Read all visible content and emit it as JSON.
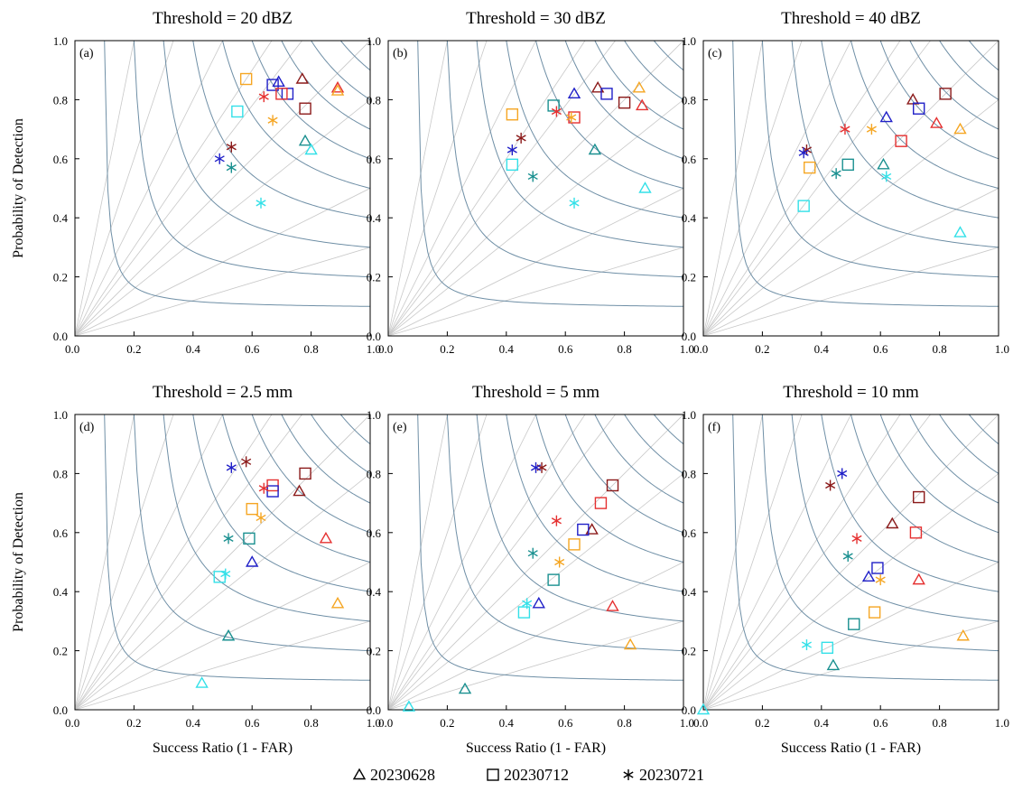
{
  "figure": {
    "ylabel": "Probability of Detection",
    "xlabel": "Success Ratio (1 - FAR)",
    "x_ticks": [
      "0.0",
      "0.2",
      "0.4",
      "0.6",
      "0.8",
      "1.0"
    ],
    "y_ticks": [
      "0.0",
      "0.2",
      "0.4",
      "0.6",
      "0.8",
      "1.0"
    ],
    "legend": [
      {
        "marker": "triangle",
        "label": "20230628"
      },
      {
        "marker": "square",
        "label": "20230712"
      },
      {
        "marker": "asterisk",
        "label": "20230721"
      }
    ]
  },
  "chart_data": [
    {
      "type": "scatter",
      "panel": "(a)",
      "title": "Threshold = 20 dBZ",
      "xlabel": "",
      "ylabel": "Probability of Detection",
      "xlim": [
        0,
        1
      ],
      "ylim": [
        0,
        1
      ],
      "points": [
        {
          "marker": "square",
          "color": "#f5a623",
          "x": 0.58,
          "y": 0.87
        },
        {
          "marker": "triangle",
          "color": "#2020c8",
          "x": 0.69,
          "y": 0.86
        },
        {
          "marker": "square",
          "color": "#2020c8",
          "x": 0.67,
          "y": 0.85
        },
        {
          "marker": "triangle",
          "color": "#8b1a1a",
          "x": 0.77,
          "y": 0.87
        },
        {
          "marker": "triangle",
          "color": "#e53030",
          "x": 0.89,
          "y": 0.84
        },
        {
          "marker": "triangle",
          "color": "#f5a623",
          "x": 0.89,
          "y": 0.83
        },
        {
          "marker": "square",
          "color": "#2020c8",
          "x": 0.72,
          "y": 0.82
        },
        {
          "marker": "square",
          "color": "#e53030",
          "x": 0.7,
          "y": 0.82
        },
        {
          "marker": "asterisk",
          "color": "#e53030",
          "x": 0.64,
          "y": 0.81
        },
        {
          "marker": "square",
          "color": "#8b1a1a",
          "x": 0.78,
          "y": 0.77
        },
        {
          "marker": "square",
          "color": "#33e0e8",
          "x": 0.55,
          "y": 0.76
        },
        {
          "marker": "asterisk",
          "color": "#f5a623",
          "x": 0.67,
          "y": 0.73
        },
        {
          "marker": "triangle",
          "color": "#1a9090",
          "x": 0.78,
          "y": 0.66
        },
        {
          "marker": "triangle",
          "color": "#33e0e8",
          "x": 0.8,
          "y": 0.63
        },
        {
          "marker": "asterisk",
          "color": "#8b1a1a",
          "x": 0.53,
          "y": 0.64
        },
        {
          "marker": "asterisk",
          "color": "#2020c8",
          "x": 0.49,
          "y": 0.6
        },
        {
          "marker": "asterisk",
          "color": "#1a9090",
          "x": 0.53,
          "y": 0.57
        },
        {
          "marker": "asterisk",
          "color": "#33e0e8",
          "x": 0.63,
          "y": 0.45
        }
      ]
    },
    {
      "type": "scatter",
      "panel": "(b)",
      "title": "Threshold = 30 dBZ",
      "xlabel": "",
      "ylabel": "",
      "xlim": [
        0,
        1
      ],
      "ylim": [
        0,
        1
      ],
      "points": [
        {
          "marker": "triangle",
          "color": "#2020c8",
          "x": 0.63,
          "y": 0.82
        },
        {
          "marker": "triangle",
          "color": "#8b1a1a",
          "x": 0.71,
          "y": 0.84
        },
        {
          "marker": "square",
          "color": "#2020c8",
          "x": 0.74,
          "y": 0.82
        },
        {
          "marker": "triangle",
          "color": "#f5a623",
          "x": 0.85,
          "y": 0.84
        },
        {
          "marker": "square",
          "color": "#8b1a1a",
          "x": 0.8,
          "y": 0.79
        },
        {
          "marker": "triangle",
          "color": "#e53030",
          "x": 0.86,
          "y": 0.78
        },
        {
          "marker": "square",
          "color": "#1a9090",
          "x": 0.56,
          "y": 0.78
        },
        {
          "marker": "asterisk",
          "color": "#e53030",
          "x": 0.57,
          "y": 0.76
        },
        {
          "marker": "square",
          "color": "#e53030",
          "x": 0.63,
          "y": 0.74
        },
        {
          "marker": "asterisk",
          "color": "#f5a623",
          "x": 0.62,
          "y": 0.74
        },
        {
          "marker": "square",
          "color": "#f5a623",
          "x": 0.42,
          "y": 0.75
        },
        {
          "marker": "asterisk",
          "color": "#8b1a1a",
          "x": 0.45,
          "y": 0.67
        },
        {
          "marker": "asterisk",
          "color": "#2020c8",
          "x": 0.42,
          "y": 0.63
        },
        {
          "marker": "triangle",
          "color": "#1a9090",
          "x": 0.7,
          "y": 0.63
        },
        {
          "marker": "square",
          "color": "#33e0e8",
          "x": 0.42,
          "y": 0.58
        },
        {
          "marker": "asterisk",
          "color": "#1a9090",
          "x": 0.49,
          "y": 0.54
        },
        {
          "marker": "triangle",
          "color": "#33e0e8",
          "x": 0.87,
          "y": 0.5
        },
        {
          "marker": "asterisk",
          "color": "#33e0e8",
          "x": 0.63,
          "y": 0.45
        }
      ]
    },
    {
      "type": "scatter",
      "panel": "(c)",
      "title": "Threshold = 40 dBZ",
      "xlabel": "",
      "ylabel": "",
      "xlim": [
        0,
        1
      ],
      "ylim": [
        0,
        1
      ],
      "points": [
        {
          "marker": "square",
          "color": "#8b1a1a",
          "x": 0.82,
          "y": 0.82
        },
        {
          "marker": "triangle",
          "color": "#8b1a1a",
          "x": 0.71,
          "y": 0.8
        },
        {
          "marker": "square",
          "color": "#2020c8",
          "x": 0.73,
          "y": 0.77
        },
        {
          "marker": "triangle",
          "color": "#2020c8",
          "x": 0.62,
          "y": 0.74
        },
        {
          "marker": "triangle",
          "color": "#e53030",
          "x": 0.79,
          "y": 0.72
        },
        {
          "marker": "triangle",
          "color": "#f5a623",
          "x": 0.87,
          "y": 0.7
        },
        {
          "marker": "asterisk",
          "color": "#f5a623",
          "x": 0.57,
          "y": 0.7
        },
        {
          "marker": "asterisk",
          "color": "#e53030",
          "x": 0.48,
          "y": 0.7
        },
        {
          "marker": "square",
          "color": "#e53030",
          "x": 0.67,
          "y": 0.66
        },
        {
          "marker": "asterisk",
          "color": "#8b1a1a",
          "x": 0.35,
          "y": 0.63
        },
        {
          "marker": "asterisk",
          "color": "#2020c8",
          "x": 0.34,
          "y": 0.62
        },
        {
          "marker": "square",
          "color": "#1a9090",
          "x": 0.49,
          "y": 0.58
        },
        {
          "marker": "triangle",
          "color": "#1a9090",
          "x": 0.61,
          "y": 0.58
        },
        {
          "marker": "square",
          "color": "#f5a623",
          "x": 0.36,
          "y": 0.57
        },
        {
          "marker": "asterisk",
          "color": "#1a9090",
          "x": 0.45,
          "y": 0.55
        },
        {
          "marker": "asterisk",
          "color": "#33e0e8",
          "x": 0.62,
          "y": 0.54
        },
        {
          "marker": "square",
          "color": "#33e0e8",
          "x": 0.34,
          "y": 0.44
        },
        {
          "marker": "triangle",
          "color": "#33e0e8",
          "x": 0.87,
          "y": 0.35
        }
      ]
    },
    {
      "type": "scatter",
      "panel": "(d)",
      "title": "Threshold = 2.5 mm",
      "xlabel": "Success Ratio (1 - FAR)",
      "ylabel": "Probability of Detection",
      "xlim": [
        0,
        1
      ],
      "ylim": [
        0,
        1
      ],
      "points": [
        {
          "marker": "asterisk",
          "color": "#8b1a1a",
          "x": 0.58,
          "y": 0.84
        },
        {
          "marker": "asterisk",
          "color": "#2020c8",
          "x": 0.53,
          "y": 0.82
        },
        {
          "marker": "square",
          "color": "#8b1a1a",
          "x": 0.78,
          "y": 0.8
        },
        {
          "marker": "square",
          "color": "#e53030",
          "x": 0.67,
          "y": 0.76
        },
        {
          "marker": "square",
          "color": "#2020c8",
          "x": 0.67,
          "y": 0.74
        },
        {
          "marker": "asterisk",
          "color": "#e53030",
          "x": 0.64,
          "y": 0.75
        },
        {
          "marker": "triangle",
          "color": "#8b1a1a",
          "x": 0.76,
          "y": 0.74
        },
        {
          "marker": "square",
          "color": "#f5a623",
          "x": 0.6,
          "y": 0.68
        },
        {
          "marker": "asterisk",
          "color": "#f5a623",
          "x": 0.63,
          "y": 0.65
        },
        {
          "marker": "square",
          "color": "#1a9090",
          "x": 0.59,
          "y": 0.58
        },
        {
          "marker": "asterisk",
          "color": "#1a9090",
          "x": 0.52,
          "y": 0.58
        },
        {
          "marker": "triangle",
          "color": "#e53030",
          "x": 0.85,
          "y": 0.58
        },
        {
          "marker": "triangle",
          "color": "#2020c8",
          "x": 0.6,
          "y": 0.5
        },
        {
          "marker": "square",
          "color": "#33e0e8",
          "x": 0.49,
          "y": 0.45
        },
        {
          "marker": "asterisk",
          "color": "#33e0e8",
          "x": 0.51,
          "y": 0.46
        },
        {
          "marker": "triangle",
          "color": "#f5a623",
          "x": 0.89,
          "y": 0.36
        },
        {
          "marker": "triangle",
          "color": "#1a9090",
          "x": 0.52,
          "y": 0.25
        },
        {
          "marker": "triangle",
          "color": "#33e0e8",
          "x": 0.43,
          "y": 0.09
        }
      ]
    },
    {
      "type": "scatter",
      "panel": "(e)",
      "title": "Threshold = 5 mm",
      "xlabel": "Success Ratio (1 - FAR)",
      "ylabel": "",
      "xlim": [
        0,
        1
      ],
      "ylim": [
        0,
        1
      ],
      "points": [
        {
          "marker": "asterisk",
          "color": "#8b1a1a",
          "x": 0.52,
          "y": 0.82
        },
        {
          "marker": "asterisk",
          "color": "#2020c8",
          "x": 0.5,
          "y": 0.82
        },
        {
          "marker": "square",
          "color": "#8b1a1a",
          "x": 0.76,
          "y": 0.76
        },
        {
          "marker": "square",
          "color": "#e53030",
          "x": 0.72,
          "y": 0.7
        },
        {
          "marker": "asterisk",
          "color": "#e53030",
          "x": 0.57,
          "y": 0.64
        },
        {
          "marker": "triangle",
          "color": "#8b1a1a",
          "x": 0.69,
          "y": 0.61
        },
        {
          "marker": "square",
          "color": "#2020c8",
          "x": 0.66,
          "y": 0.61
        },
        {
          "marker": "square",
          "color": "#f5a623",
          "x": 0.63,
          "y": 0.56
        },
        {
          "marker": "asterisk",
          "color": "#1a9090",
          "x": 0.49,
          "y": 0.53
        },
        {
          "marker": "asterisk",
          "color": "#f5a623",
          "x": 0.58,
          "y": 0.5
        },
        {
          "marker": "square",
          "color": "#1a9090",
          "x": 0.56,
          "y": 0.44
        },
        {
          "marker": "triangle",
          "color": "#2020c8",
          "x": 0.51,
          "y": 0.36
        },
        {
          "marker": "asterisk",
          "color": "#33e0e8",
          "x": 0.47,
          "y": 0.36
        },
        {
          "marker": "triangle",
          "color": "#e53030",
          "x": 0.76,
          "y": 0.35
        },
        {
          "marker": "square",
          "color": "#33e0e8",
          "x": 0.46,
          "y": 0.33
        },
        {
          "marker": "triangle",
          "color": "#f5a623",
          "x": 0.82,
          "y": 0.22
        },
        {
          "marker": "triangle",
          "color": "#1a9090",
          "x": 0.26,
          "y": 0.07
        },
        {
          "marker": "triangle",
          "color": "#33e0e8",
          "x": 0.07,
          "y": 0.01
        }
      ]
    },
    {
      "type": "scatter",
      "panel": "(f)",
      "title": "Threshold = 10 mm",
      "xlabel": "Success Ratio (1 - FAR)",
      "ylabel": "",
      "xlim": [
        0,
        1
      ],
      "ylim": [
        0,
        1
      ],
      "points": [
        {
          "marker": "asterisk",
          "color": "#2020c8",
          "x": 0.47,
          "y": 0.8
        },
        {
          "marker": "asterisk",
          "color": "#8b1a1a",
          "x": 0.43,
          "y": 0.76
        },
        {
          "marker": "square",
          "color": "#8b1a1a",
          "x": 0.73,
          "y": 0.72
        },
        {
          "marker": "triangle",
          "color": "#8b1a1a",
          "x": 0.64,
          "y": 0.63
        },
        {
          "marker": "square",
          "color": "#e53030",
          "x": 0.72,
          "y": 0.6
        },
        {
          "marker": "asterisk",
          "color": "#e53030",
          "x": 0.52,
          "y": 0.58
        },
        {
          "marker": "asterisk",
          "color": "#1a9090",
          "x": 0.49,
          "y": 0.52
        },
        {
          "marker": "square",
          "color": "#2020c8",
          "x": 0.59,
          "y": 0.48
        },
        {
          "marker": "triangle",
          "color": "#2020c8",
          "x": 0.56,
          "y": 0.45
        },
        {
          "marker": "asterisk",
          "color": "#f5a623",
          "x": 0.6,
          "y": 0.44
        },
        {
          "marker": "triangle",
          "color": "#e53030",
          "x": 0.73,
          "y": 0.44
        },
        {
          "marker": "square",
          "color": "#f5a623",
          "x": 0.58,
          "y": 0.33
        },
        {
          "marker": "square",
          "color": "#1a9090",
          "x": 0.51,
          "y": 0.29
        },
        {
          "marker": "triangle",
          "color": "#f5a623",
          "x": 0.88,
          "y": 0.25
        },
        {
          "marker": "asterisk",
          "color": "#33e0e8",
          "x": 0.35,
          "y": 0.22
        },
        {
          "marker": "square",
          "color": "#33e0e8",
          "x": 0.42,
          "y": 0.21
        },
        {
          "marker": "triangle",
          "color": "#1a9090",
          "x": 0.44,
          "y": 0.15
        },
        {
          "marker": "triangle",
          "color": "#33e0e8",
          "x": 0.0,
          "y": 0.0
        }
      ]
    }
  ]
}
